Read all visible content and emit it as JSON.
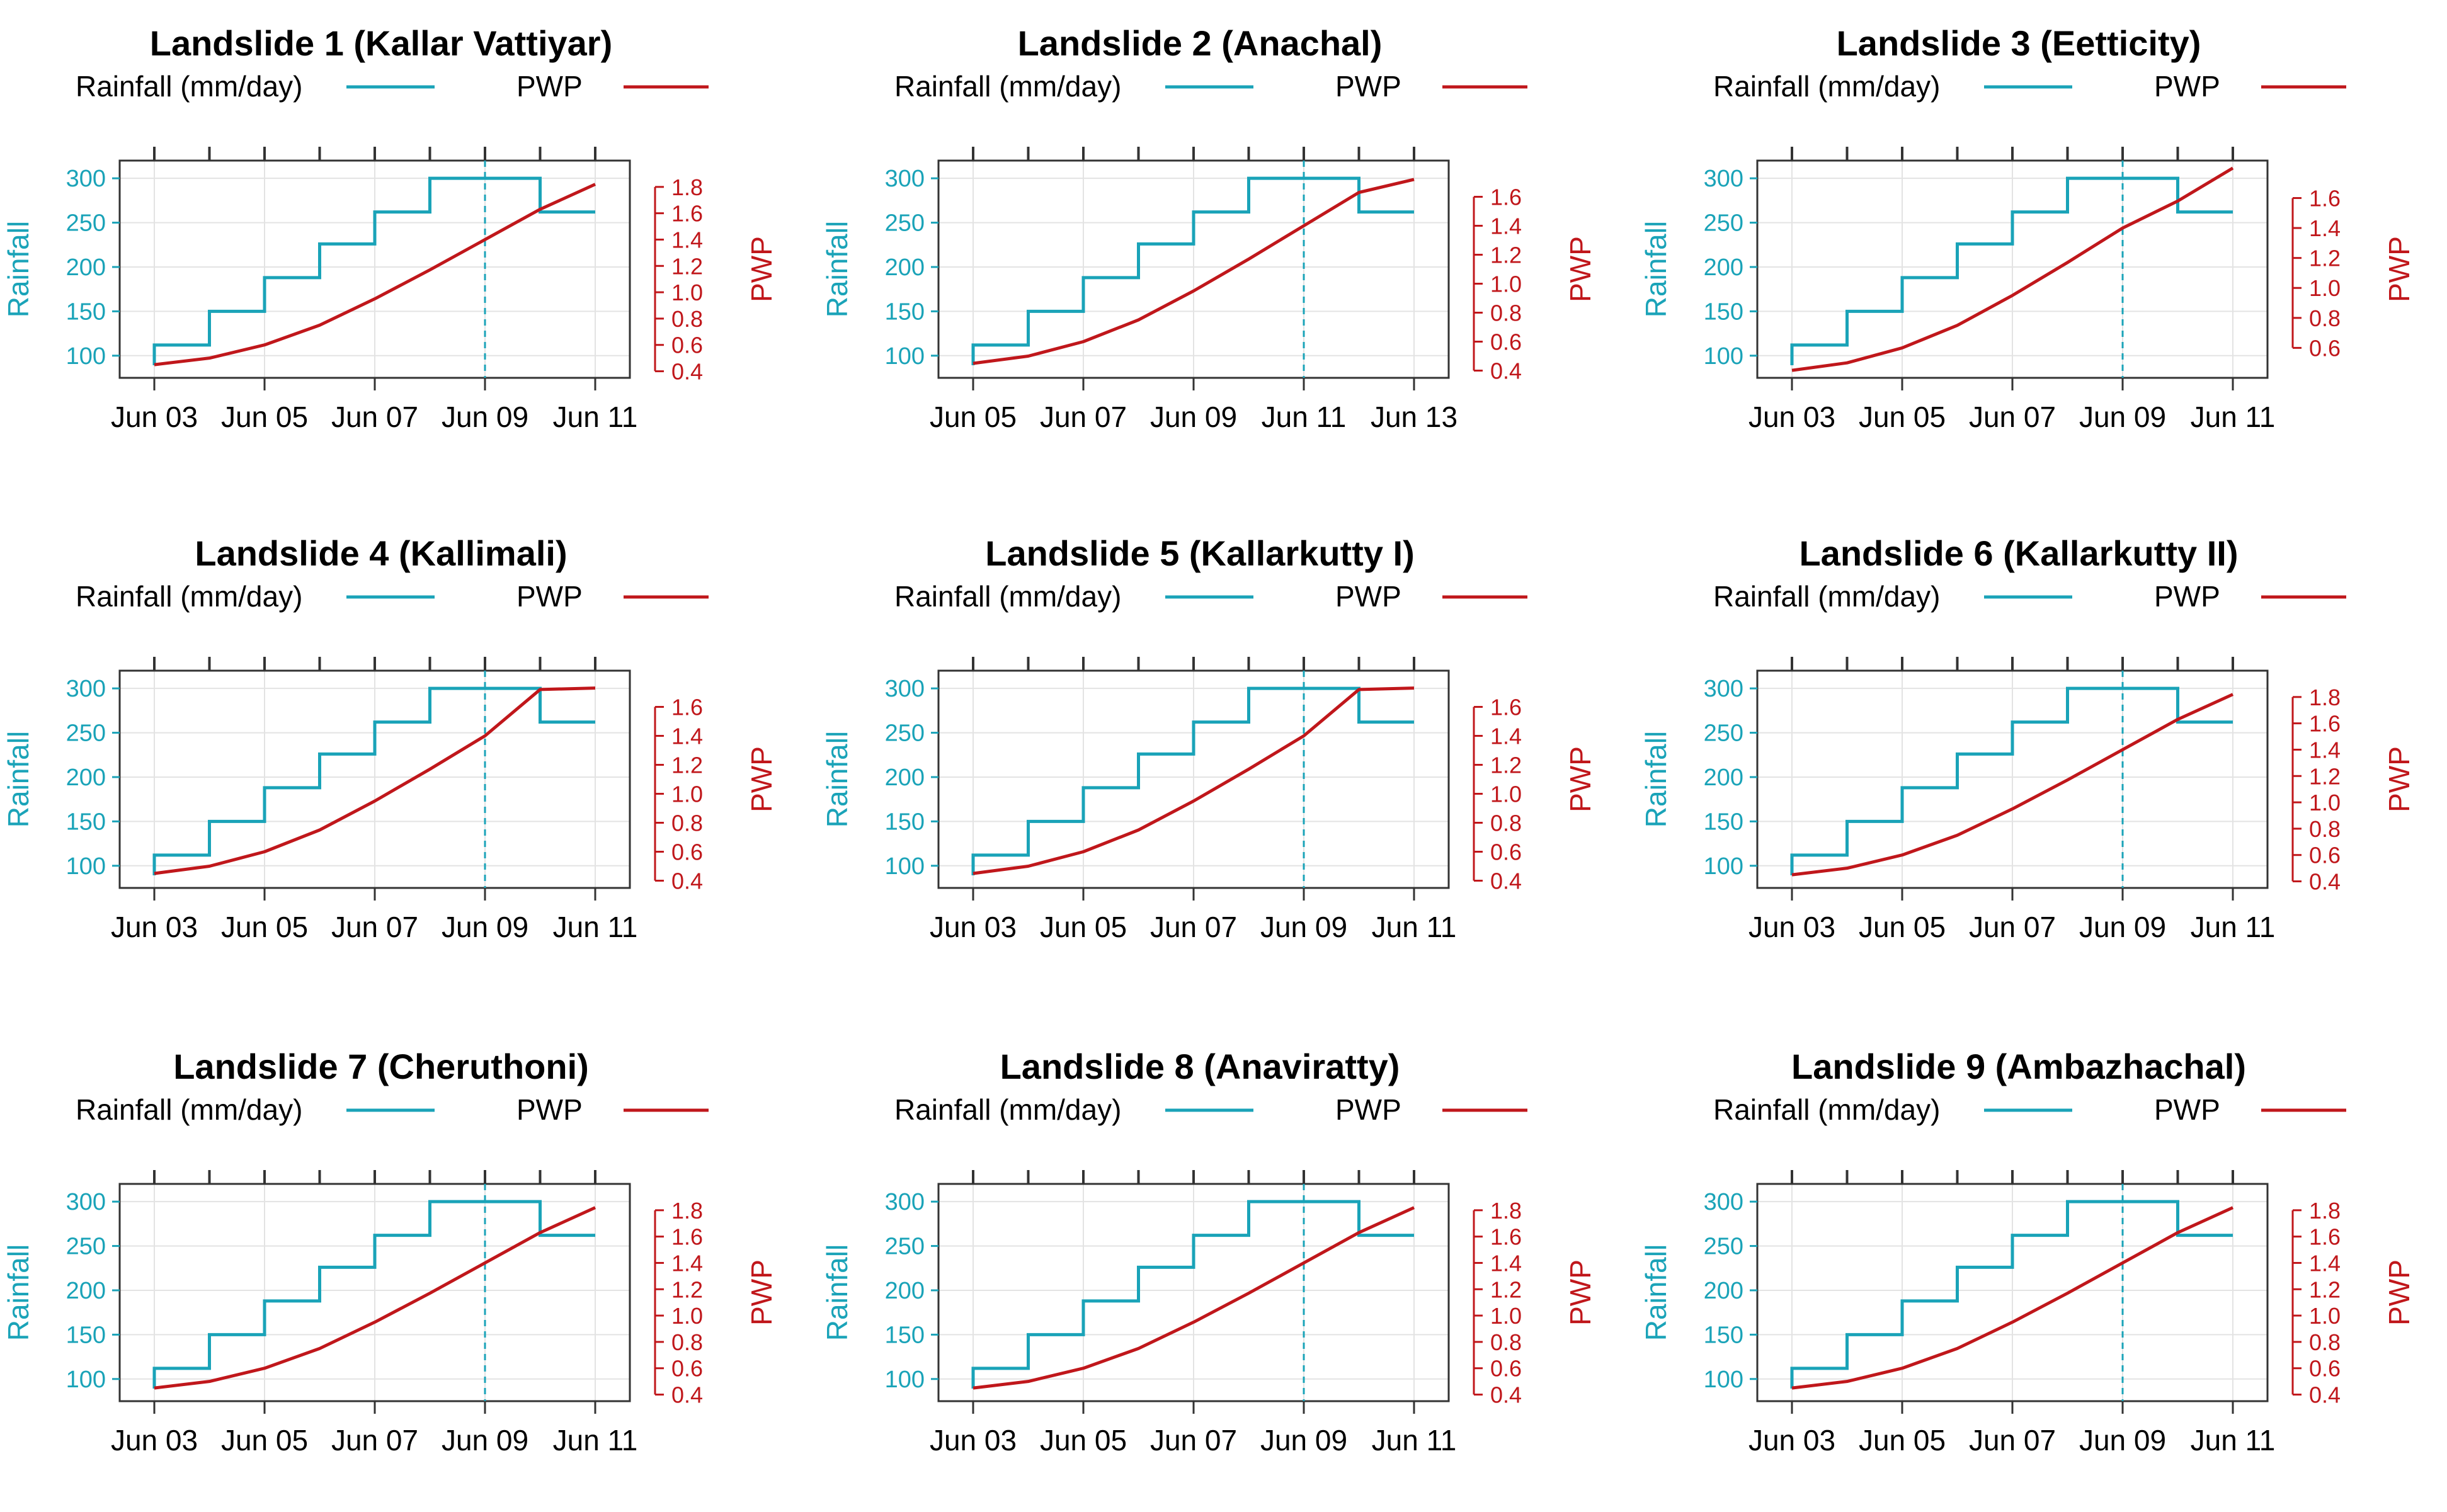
{
  "figure": {
    "colors": {
      "rainfall": "#1aa3b8",
      "pwp": "#c0171b",
      "grid": "#e3e3e3",
      "frame": "#333333"
    }
  },
  "chart_data": [
    {
      "type": "line",
      "title": "Landslide 1 (Kallar Vattiyar)",
      "legend": [
        "Rainfall (mm/day)",
        "PWP"
      ],
      "ylabel_left": "Rainfall",
      "ylabel_right": "PWP",
      "x_range": [
        3,
        11
      ],
      "x_ticks": [
        3,
        5,
        7,
        9,
        11
      ],
      "x_tick_labels": [
        "Jun 03",
        "Jun 05",
        "Jun 07",
        "Jun 09",
        "Jun 11"
      ],
      "event_day": 9,
      "ylim_left": [
        75,
        320
      ],
      "y_ticks_left": [
        100,
        150,
        200,
        250,
        300
      ],
      "ylim_right": [
        0.35,
        2.0
      ],
      "y_ticks_right": [
        0.4,
        0.6,
        0.8,
        1.0,
        1.2,
        1.4,
        1.6,
        1.8
      ],
      "y_tick_labels_right": [
        "0.4",
        "0.6",
        "0.8",
        "1.0",
        "1.2",
        "1.4",
        "1.6",
        "1.8"
      ],
      "series": [
        {
          "name": "Rainfall (mm/day)",
          "x": [
            3,
            4,
            5,
            6,
            7,
            8,
            9,
            10,
            11
          ],
          "values": [
            112,
            150,
            188,
            226,
            262,
            300,
            300,
            262,
            262
          ]
        },
        {
          "name": "PWP",
          "x": [
            3,
            4,
            5,
            6,
            7,
            8,
            9,
            10,
            11
          ],
          "values": [
            0.45,
            0.5,
            0.6,
            0.75,
            0.95,
            1.17,
            1.4,
            1.63,
            1.82
          ]
        }
      ]
    },
    {
      "type": "line",
      "title": "Landslide 2 (Anachal)",
      "legend": [
        "Rainfall (mm/day)",
        "PWP"
      ],
      "ylabel_left": "Rainfall",
      "ylabel_right": "PWP",
      "x_range": [
        5,
        13
      ],
      "x_ticks": [
        5,
        7,
        9,
        11,
        13
      ],
      "x_tick_labels": [
        "Jun 05",
        "Jun 07",
        "Jun 09",
        "Jun 11",
        "Jun 13"
      ],
      "event_day": 11,
      "ylim_left": [
        75,
        320
      ],
      "y_ticks_left": [
        100,
        150,
        200,
        250,
        300
      ],
      "ylim_right": [
        0.35,
        1.85
      ],
      "y_ticks_right": [
        0.4,
        0.6,
        0.8,
        1.0,
        1.2,
        1.4,
        1.6
      ],
      "y_tick_labels_right": [
        "0.4",
        "0.6",
        "0.8",
        "1.0",
        "1.2",
        "1.4",
        "1.6"
      ],
      "series": [
        {
          "name": "Rainfall (mm/day)",
          "x": [
            5,
            6,
            7,
            8,
            9,
            10,
            11,
            12,
            13
          ],
          "values": [
            112,
            150,
            188,
            226,
            262,
            300,
            300,
            262,
            262
          ]
        },
        {
          "name": "PWP",
          "x": [
            5,
            6,
            7,
            8,
            9,
            10,
            11,
            12,
            13
          ],
          "values": [
            0.45,
            0.5,
            0.6,
            0.75,
            0.95,
            1.17,
            1.4,
            1.63,
            1.72
          ]
        }
      ]
    },
    {
      "type": "line",
      "title": "Landslide 3 (Eetticity)",
      "legend": [
        "Rainfall (mm/day)",
        "PWP"
      ],
      "ylabel_left": "Rainfall",
      "ylabel_right": "PWP",
      "x_range": [
        3,
        11
      ],
      "x_ticks": [
        3,
        5,
        7,
        9,
        11
      ],
      "x_tick_labels": [
        "Jun 03",
        "Jun 05",
        "Jun 07",
        "Jun 09",
        "Jun 11"
      ],
      "event_day": 9,
      "ylim_left": [
        75,
        320
      ],
      "y_ticks_left": [
        100,
        150,
        200,
        250,
        300
      ],
      "ylim_right": [
        0.4,
        1.85
      ],
      "y_ticks_right": [
        0.6,
        0.8,
        1.0,
        1.2,
        1.4,
        1.6
      ],
      "y_tick_labels_right": [
        "0.6",
        "0.8",
        "1.0",
        "1.2",
        "1.4",
        "1.6"
      ],
      "series": [
        {
          "name": "Rainfall (mm/day)",
          "x": [
            3,
            4,
            5,
            6,
            7,
            8,
            9,
            10,
            11
          ],
          "values": [
            112,
            150,
            188,
            226,
            262,
            300,
            300,
            262,
            262
          ]
        },
        {
          "name": "PWP",
          "x": [
            3,
            4,
            5,
            6,
            7,
            8,
            9,
            10,
            11
          ],
          "values": [
            0.45,
            0.5,
            0.6,
            0.75,
            0.95,
            1.17,
            1.4,
            1.58,
            1.8
          ]
        }
      ]
    },
    {
      "type": "line",
      "title": "Landslide 4 (Kallimali)",
      "legend": [
        "Rainfall (mm/day)",
        "PWP"
      ],
      "ylabel_left": "Rainfall",
      "ylabel_right": "PWP",
      "x_range": [
        3,
        11
      ],
      "x_ticks": [
        3,
        5,
        7,
        9,
        11
      ],
      "x_tick_labels": [
        "Jun 03",
        "Jun 05",
        "Jun 07",
        "Jun 09",
        "Jun 11"
      ],
      "event_day": 9,
      "ylim_left": [
        75,
        320
      ],
      "y_ticks_left": [
        100,
        150,
        200,
        250,
        300
      ],
      "ylim_right": [
        0.35,
        1.85
      ],
      "y_ticks_right": [
        0.4,
        0.6,
        0.8,
        1.0,
        1.2,
        1.4,
        1.6
      ],
      "y_tick_labels_right": [
        "0.4",
        "0.6",
        "0.8",
        "1.0",
        "1.2",
        "1.4",
        "1.6"
      ],
      "series": [
        {
          "name": "Rainfall (mm/day)",
          "x": [
            3,
            4,
            5,
            6,
            7,
            8,
            9,
            10,
            11
          ],
          "values": [
            112,
            150,
            188,
            226,
            262,
            300,
            300,
            262,
            262
          ]
        },
        {
          "name": "PWP",
          "x": [
            3,
            4,
            5,
            6,
            7,
            8,
            9,
            10,
            11
          ],
          "values": [
            0.45,
            0.5,
            0.6,
            0.75,
            0.95,
            1.17,
            1.4,
            1.72,
            1.73
          ]
        }
      ]
    },
    {
      "type": "line",
      "title": "Landslide 5 (Kallarkutty I)",
      "legend": [
        "Rainfall (mm/day)",
        "PWP"
      ],
      "ylabel_left": "Rainfall",
      "ylabel_right": "PWP",
      "x_range": [
        3,
        11
      ],
      "x_ticks": [
        3,
        5,
        7,
        9,
        11
      ],
      "x_tick_labels": [
        "Jun 03",
        "Jun 05",
        "Jun 07",
        "Jun 09",
        "Jun 11"
      ],
      "event_day": 9,
      "ylim_left": [
        75,
        320
      ],
      "y_ticks_left": [
        100,
        150,
        200,
        250,
        300
      ],
      "ylim_right": [
        0.35,
        1.85
      ],
      "y_ticks_right": [
        0.4,
        0.6,
        0.8,
        1.0,
        1.2,
        1.4,
        1.6
      ],
      "y_tick_labels_right": [
        "0.4",
        "0.6",
        "0.8",
        "1.0",
        "1.2",
        "1.4",
        "1.6"
      ],
      "series": [
        {
          "name": "Rainfall (mm/day)",
          "x": [
            3,
            4,
            5,
            6,
            7,
            8,
            9,
            10,
            11
          ],
          "values": [
            112,
            150,
            188,
            226,
            262,
            300,
            300,
            262,
            262
          ]
        },
        {
          "name": "PWP",
          "x": [
            3,
            4,
            5,
            6,
            7,
            8,
            9,
            10,
            11
          ],
          "values": [
            0.45,
            0.5,
            0.6,
            0.75,
            0.95,
            1.17,
            1.4,
            1.72,
            1.73
          ]
        }
      ]
    },
    {
      "type": "line",
      "title": "Landslide 6 (Kallarkutty II)",
      "legend": [
        "Rainfall (mm/day)",
        "PWP"
      ],
      "ylabel_left": "Rainfall",
      "ylabel_right": "PWP",
      "x_range": [
        3,
        11
      ],
      "x_ticks": [
        3,
        5,
        7,
        9,
        11
      ],
      "x_tick_labels": [
        "Jun 03",
        "Jun 05",
        "Jun 07",
        "Jun 09",
        "Jun 11"
      ],
      "event_day": 9,
      "ylim_left": [
        75,
        320
      ],
      "y_ticks_left": [
        100,
        150,
        200,
        250,
        300
      ],
      "ylim_right": [
        0.35,
        2.0
      ],
      "y_ticks_right": [
        0.4,
        0.6,
        0.8,
        1.0,
        1.2,
        1.4,
        1.6,
        1.8
      ],
      "y_tick_labels_right": [
        "0.4",
        "0.6",
        "0.8",
        "1.0",
        "1.2",
        "1.4",
        "1.6",
        "1.8"
      ],
      "series": [
        {
          "name": "Rainfall (mm/day)",
          "x": [
            3,
            4,
            5,
            6,
            7,
            8,
            9,
            10,
            11
          ],
          "values": [
            112,
            150,
            188,
            226,
            262,
            300,
            300,
            262,
            262
          ]
        },
        {
          "name": "PWP",
          "x": [
            3,
            4,
            5,
            6,
            7,
            8,
            9,
            10,
            11
          ],
          "values": [
            0.45,
            0.5,
            0.6,
            0.75,
            0.95,
            1.17,
            1.4,
            1.63,
            1.82
          ]
        }
      ]
    },
    {
      "type": "line",
      "title": "Landslide 7 (Cheruthoni)",
      "legend": [
        "Rainfall (mm/day)",
        "PWP"
      ],
      "ylabel_left": "Rainfall",
      "ylabel_right": "PWP",
      "x_range": [
        3,
        11
      ],
      "x_ticks": [
        3,
        5,
        7,
        9,
        11
      ],
      "x_tick_labels": [
        "Jun 03",
        "Jun 05",
        "Jun 07",
        "Jun 09",
        "Jun 11"
      ],
      "event_day": 9,
      "ylim_left": [
        75,
        320
      ],
      "y_ticks_left": [
        100,
        150,
        200,
        250,
        300
      ],
      "ylim_right": [
        0.35,
        2.0
      ],
      "y_ticks_right": [
        0.4,
        0.6,
        0.8,
        1.0,
        1.2,
        1.4,
        1.6,
        1.8
      ],
      "y_tick_labels_right": [
        "0.4",
        "0.6",
        "0.8",
        "1.0",
        "1.2",
        "1.4",
        "1.6",
        "1.8"
      ],
      "series": [
        {
          "name": "Rainfall (mm/day)",
          "x": [
            3,
            4,
            5,
            6,
            7,
            8,
            9,
            10,
            11
          ],
          "values": [
            112,
            150,
            188,
            226,
            262,
            300,
            300,
            262,
            262
          ]
        },
        {
          "name": "PWP",
          "x": [
            3,
            4,
            5,
            6,
            7,
            8,
            9,
            10,
            11
          ],
          "values": [
            0.45,
            0.5,
            0.6,
            0.75,
            0.95,
            1.17,
            1.4,
            1.63,
            1.82
          ]
        }
      ]
    },
    {
      "type": "line",
      "title": "Landslide 8 (Anaviratty)",
      "legend": [
        "Rainfall (mm/day)",
        "PWP"
      ],
      "ylabel_left": "Rainfall",
      "ylabel_right": "PWP",
      "x_range": [
        3,
        11
      ],
      "x_ticks": [
        3,
        5,
        7,
        9,
        11
      ],
      "x_tick_labels": [
        "Jun 03",
        "Jun 05",
        "Jun 07",
        "Jun 09",
        "Jun 11"
      ],
      "event_day": 9,
      "ylim_left": [
        75,
        320
      ],
      "y_ticks_left": [
        100,
        150,
        200,
        250,
        300
      ],
      "ylim_right": [
        0.35,
        2.0
      ],
      "y_ticks_right": [
        0.4,
        0.6,
        0.8,
        1.0,
        1.2,
        1.4,
        1.6,
        1.8
      ],
      "y_tick_labels_right": [
        "0.4",
        "0.6",
        "0.8",
        "1.0",
        "1.2",
        "1.4",
        "1.6",
        "1.8"
      ],
      "series": [
        {
          "name": "Rainfall (mm/day)",
          "x": [
            3,
            4,
            5,
            6,
            7,
            8,
            9,
            10,
            11
          ],
          "values": [
            112,
            150,
            188,
            226,
            262,
            300,
            300,
            262,
            262
          ]
        },
        {
          "name": "PWP",
          "x": [
            3,
            4,
            5,
            6,
            7,
            8,
            9,
            10,
            11
          ],
          "values": [
            0.45,
            0.5,
            0.6,
            0.75,
            0.95,
            1.17,
            1.4,
            1.63,
            1.82
          ]
        }
      ]
    },
    {
      "type": "line",
      "title": "Landslide 9 (Ambazhachal)",
      "legend": [
        "Rainfall (mm/day)",
        "PWP"
      ],
      "ylabel_left": "Rainfall",
      "ylabel_right": "PWP",
      "x_range": [
        3,
        11
      ],
      "x_ticks": [
        3,
        5,
        7,
        9,
        11
      ],
      "x_tick_labels": [
        "Jun 03",
        "Jun 05",
        "Jun 07",
        "Jun 09",
        "Jun 11"
      ],
      "event_day": 9,
      "ylim_left": [
        75,
        320
      ],
      "y_ticks_left": [
        100,
        150,
        200,
        250,
        300
      ],
      "ylim_right": [
        0.35,
        2.0
      ],
      "y_ticks_right": [
        0.4,
        0.6,
        0.8,
        1.0,
        1.2,
        1.4,
        1.6,
        1.8
      ],
      "y_tick_labels_right": [
        "0.4",
        "0.6",
        "0.8",
        "1.0",
        "1.2",
        "1.4",
        "1.6",
        "1.8"
      ],
      "series": [
        {
          "name": "Rainfall (mm/day)",
          "x": [
            3,
            4,
            5,
            6,
            7,
            8,
            9,
            10,
            11
          ],
          "values": [
            112,
            150,
            188,
            226,
            262,
            300,
            300,
            262,
            262
          ]
        },
        {
          "name": "PWP",
          "x": [
            3,
            4,
            5,
            6,
            7,
            8,
            9,
            10,
            11
          ],
          "values": [
            0.45,
            0.5,
            0.6,
            0.75,
            0.95,
            1.17,
            1.4,
            1.63,
            1.82
          ]
        }
      ]
    }
  ]
}
